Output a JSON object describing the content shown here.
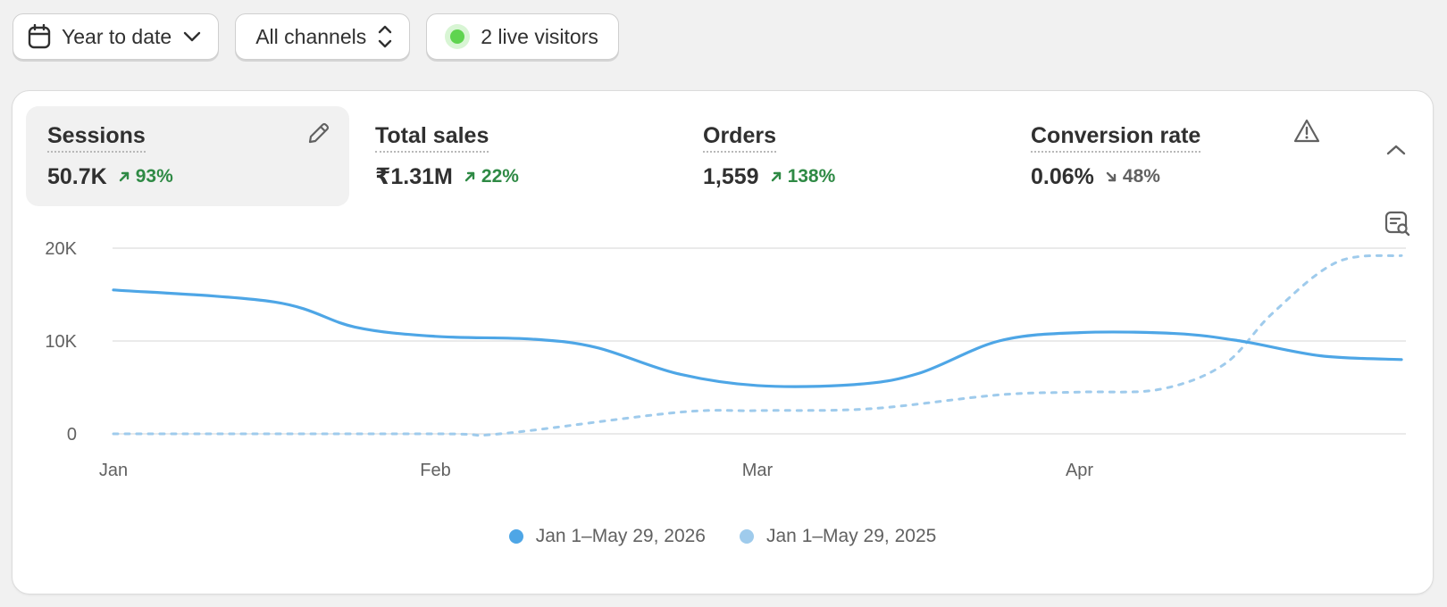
{
  "toolbar": {
    "date_range": {
      "label": "Year to date",
      "icon": "calendar-icon"
    },
    "channels": {
      "label": "All channels",
      "icon": "chevron-up-down-icon"
    },
    "live": {
      "label": "2 live visitors",
      "status_color": "#5fd44f"
    }
  },
  "metrics": [
    {
      "label": "Sessions",
      "value": "50.7K",
      "delta": "93%",
      "trend": "up",
      "active": true
    },
    {
      "label": "Total sales",
      "value": "₹1.31M",
      "delta": "22%",
      "trend": "up",
      "active": false
    },
    {
      "label": "Orders",
      "value": "1,559",
      "delta": "138%",
      "trend": "up",
      "active": false
    },
    {
      "label": "Conversion rate",
      "value": "0.06%",
      "delta": "48%",
      "trend": "down",
      "active": false
    }
  ],
  "icons": {
    "edit": "pencil-icon",
    "warning": "warning-triangle-icon",
    "collapse": "chevron-up-icon",
    "inspect": "chart-search-icon"
  },
  "colors": {
    "current_series": "#4ea6e6",
    "previous_series": "#9fcbec",
    "positive": "#2f8a45",
    "neutral": "#616161"
  },
  "chart_data": {
    "type": "line",
    "y_ticks": [
      "0",
      "10K",
      "20K"
    ],
    "x_ticks": [
      "Jan",
      "Feb",
      "Mar",
      "Apr"
    ],
    "ylim": [
      0,
      20000
    ],
    "grid": true,
    "legend_position": "bottom-center",
    "series": [
      {
        "name": "Jan 1–May 29, 2026",
        "style": "solid",
        "color": "#4ea6e6",
        "points": [
          [
            0,
            15500
          ],
          [
            0.5,
            14200
          ],
          [
            0.75,
            11500
          ],
          [
            1,
            10500
          ],
          [
            1.3,
            10200
          ],
          [
            1.5,
            9300
          ],
          [
            1.75,
            6500
          ],
          [
            2,
            5200
          ],
          [
            2.3,
            5300
          ],
          [
            2.5,
            6500
          ],
          [
            2.75,
            10000
          ],
          [
            3,
            10900
          ],
          [
            3.3,
            10800
          ],
          [
            3.5,
            10000
          ],
          [
            3.75,
            8400
          ],
          [
            4,
            8000
          ]
        ]
      },
      {
        "name": "Jan 1–May 29, 2025",
        "style": "dashed",
        "color": "#9fcbec",
        "points": [
          [
            0,
            0
          ],
          [
            1,
            0
          ],
          [
            1.2,
            0.5
          ],
          [
            1.75,
            2300
          ],
          [
            2,
            2500
          ],
          [
            2.35,
            2700
          ],
          [
            2.75,
            4200
          ],
          [
            3,
            4500
          ],
          [
            3.25,
            4800
          ],
          [
            3.45,
            7500
          ],
          [
            3.6,
            13000
          ],
          [
            3.8,
            18500
          ],
          [
            4,
            19200
          ]
        ]
      }
    ]
  }
}
